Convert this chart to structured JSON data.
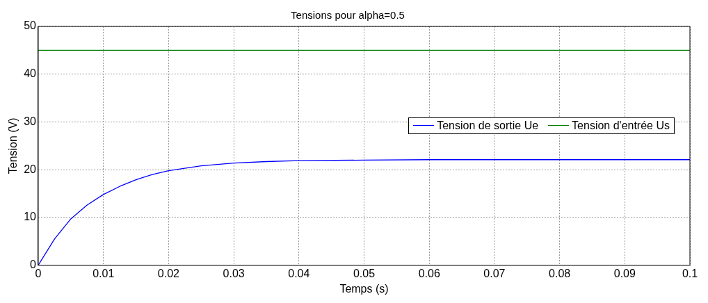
{
  "chart_data": {
    "type": "line",
    "title": "Tensions pour alpha=0.5",
    "xlabel": "Temps (s)",
    "ylabel": "Tension (V)",
    "xlim": [
      0,
      0.1
    ],
    "xticks": [
      0,
      0.01,
      0.02,
      0.03,
      0.04,
      0.05,
      0.06,
      0.07,
      0.08,
      0.09,
      0.1
    ],
    "ylim": [
      0,
      50
    ],
    "yticks": [
      0,
      10,
      20,
      30,
      40,
      50
    ],
    "grid": true,
    "legend": "right",
    "marker": "none",
    "line_style": "solid",
    "series": [
      {
        "name": "Tension de sortie Ue",
        "color": "#0000ff",
        "x": [
          0,
          0.0025,
          0.005,
          0.0075,
          0.01,
          0.0125,
          0.015,
          0.0175,
          0.02,
          0.025,
          0.03,
          0.035,
          0.04,
          0.05,
          0.06,
          0.07,
          0.08,
          0.09,
          0.1
        ],
        "values": [
          0,
          5.5,
          9.7,
          12.6,
          14.8,
          16.5,
          17.9,
          19,
          19.8,
          20.8,
          21.4,
          21.7,
          21.9,
          22,
          22.1,
          22.1,
          22.1,
          22.1,
          22.1
        ]
      },
      {
        "name": "Tension d'entrée Us",
        "color": "#008000",
        "x": [
          0,
          0.1
        ],
        "values": [
          45,
          45
        ]
      }
    ]
  }
}
